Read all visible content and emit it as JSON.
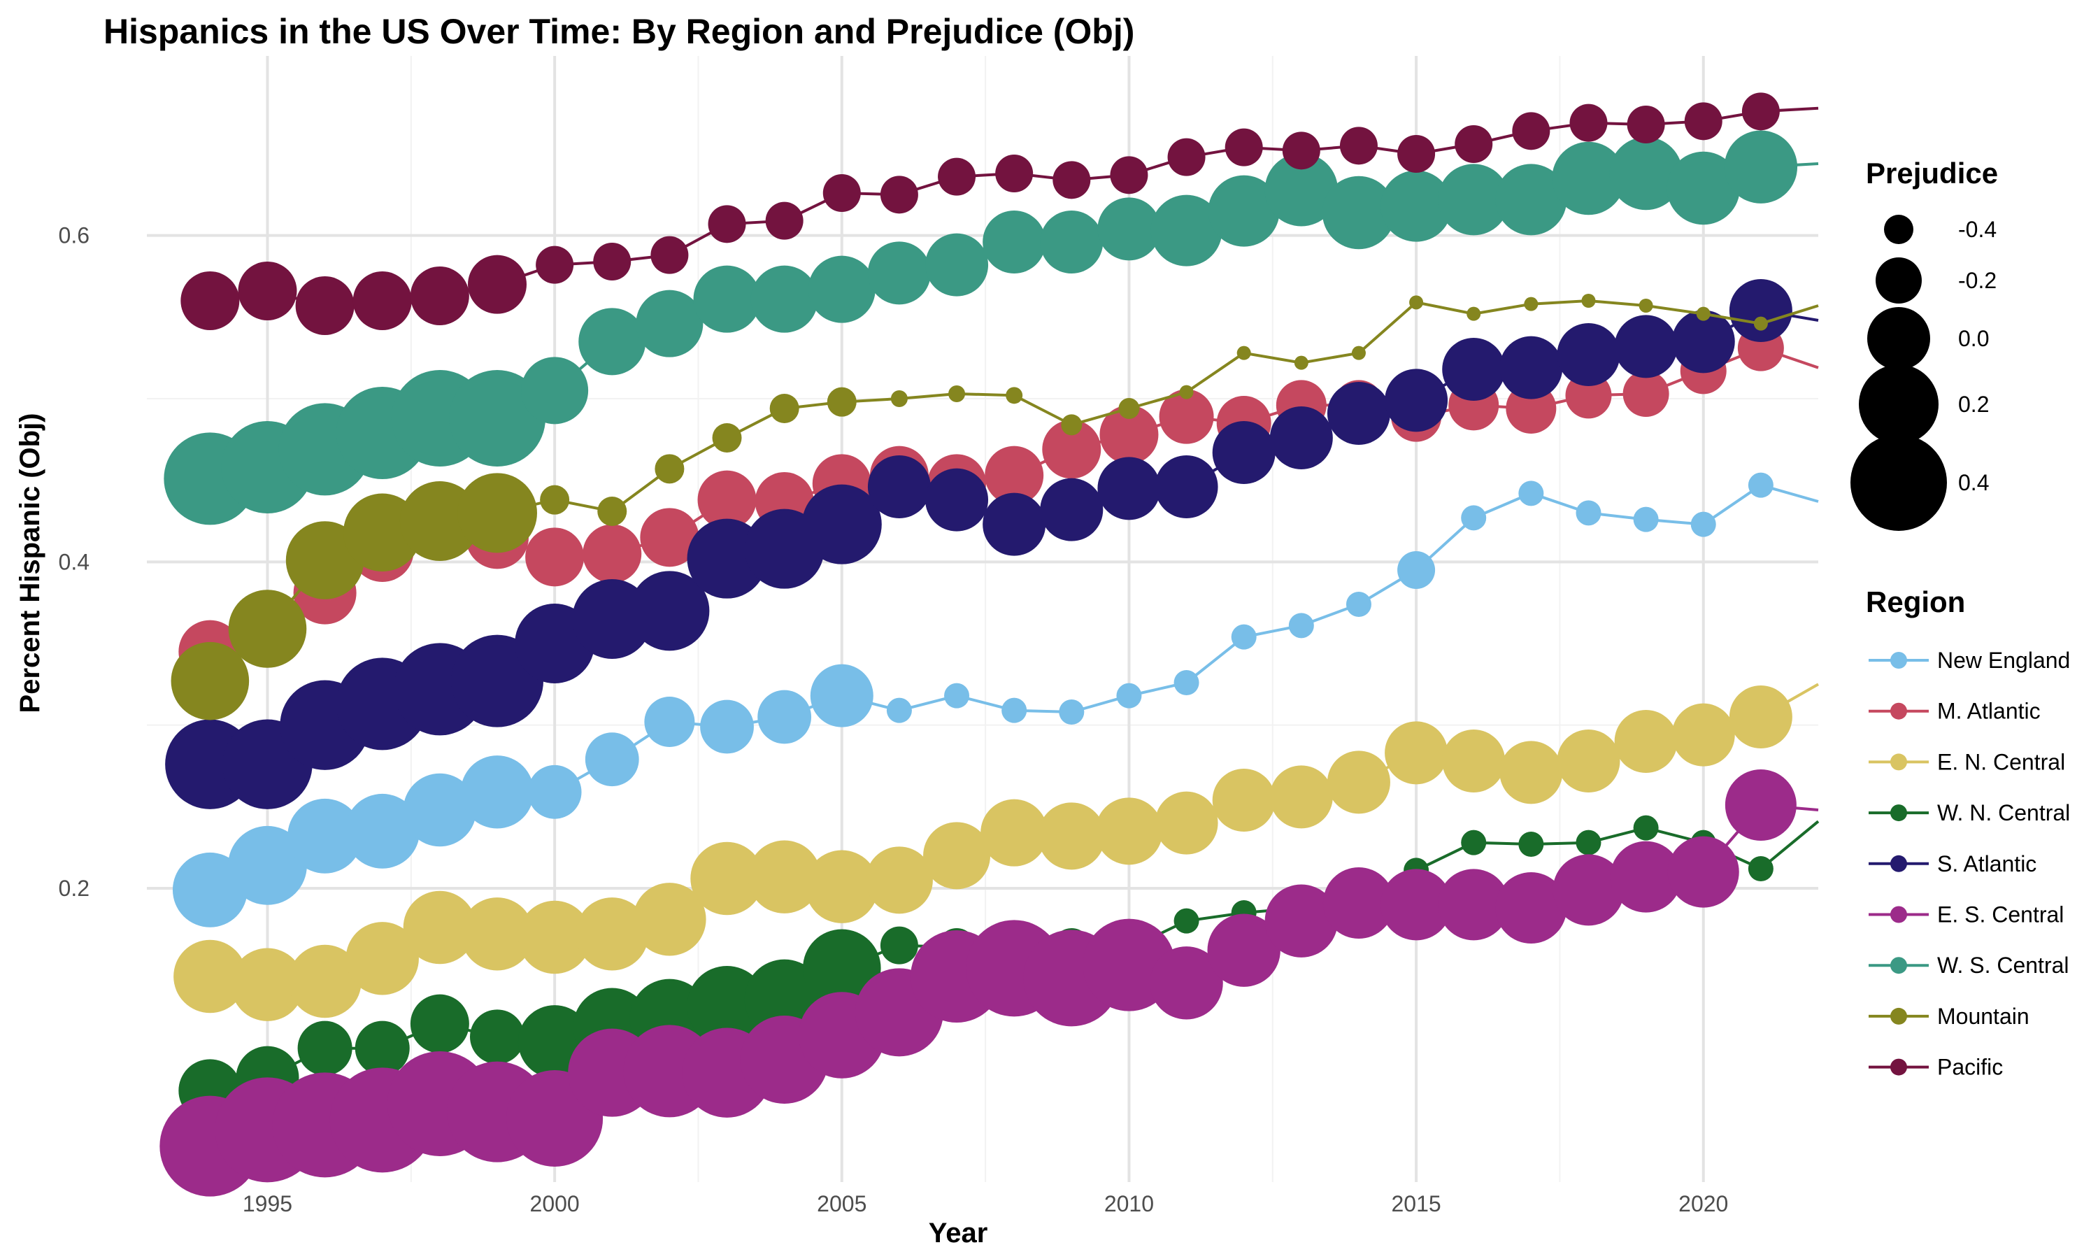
{
  "chart_data": {
    "type": "line",
    "title": "Hispanics in the US Over Time: By Region and Prejudice (Obj)",
    "xlabel": "Year",
    "ylabel": "Percent Hispanic (Obj)",
    "xlim": [
      1992.9,
      2022
    ],
    "ylim": [
      0.02,
      0.71
    ],
    "x_ticks": [
      1995,
      2000,
      2005,
      2010,
      2015,
      2020
    ],
    "y_ticks": [
      0.2,
      0.4,
      0.6
    ],
    "x_tick_labels": [
      "1995",
      "2000",
      "2005",
      "2010",
      "2015",
      "2020"
    ],
    "y_tick_labels": [
      "0.2",
      "0.4",
      "0.6"
    ],
    "grid": true,
    "legend_position": "right",
    "size_legend": {
      "title": "Prejudice",
      "values": [
        -0.4,
        -0.2,
        0.0,
        0.2,
        0.4
      ],
      "labels": [
        "-0.4",
        "-0.2",
        "0.0",
        "0.2",
        "0.4"
      ]
    },
    "color_legend": {
      "title": "Region"
    },
    "series": [
      {
        "name": "New England",
        "color": "#78BEE8",
        "x": [
          1994,
          1995,
          1996,
          1997,
          1998,
          1999,
          2000,
          2001,
          2002,
          2003,
          2004,
          2005,
          2006,
          2007,
          2008,
          2009,
          2010,
          2011,
          2012,
          2013,
          2014,
          2015,
          2016,
          2017,
          2018,
          2019,
          2020,
          2021,
          2022
        ],
        "y": [
          0.199,
          0.214,
          0.232,
          0.235,
          0.248,
          0.259,
          0.259,
          0.279,
          0.302,
          0.299,
          0.305,
          0.318,
          0.309,
          0.318,
          0.309,
          0.308,
          0.318,
          0.326,
          0.354,
          0.361,
          0.374,
          0.395,
          0.427,
          0.442,
          0.43,
          0.426,
          0.423,
          0.447,
          0.437
        ],
        "prejudice": [
          0.14,
          0.19,
          0.14,
          0.14,
          0.12,
          0.12,
          -0.11,
          -0.11,
          -0.15,
          -0.11,
          -0.11,
          0.0,
          -0.45,
          -0.45,
          -0.45,
          -0.45,
          -0.45,
          -0.45,
          -0.45,
          -0.45,
          -0.45,
          -0.3,
          -0.45,
          -0.45,
          -0.45,
          -0.45,
          -0.45,
          -0.45,
          null
        ]
      },
      {
        "name": "M. Atlantic",
        "color": "#C5485F",
        "x": [
          1994,
          1995,
          1996,
          1997,
          1998,
          1999,
          2000,
          2001,
          2002,
          2003,
          2004,
          2005,
          2006,
          2007,
          2008,
          2009,
          2010,
          2011,
          2012,
          2013,
          2014,
          2015,
          2016,
          2017,
          2018,
          2019,
          2020,
          2021,
          2022
        ],
        "y": [
          0.345,
          0.357,
          0.381,
          0.407,
          0.421,
          0.415,
          0.403,
          0.405,
          0.415,
          0.438,
          0.437,
          0.448,
          0.453,
          0.448,
          0.453,
          0.469,
          0.478,
          0.489,
          0.485,
          0.496,
          0.496,
          0.489,
          0.496,
          0.494,
          0.502,
          0.503,
          0.517,
          0.531,
          0.519
        ],
        "prejudice": [
          0.0,
          0.0,
          0.0,
          0.0,
          0.0,
          0.0,
          -0.05,
          -0.05,
          -0.05,
          -0.05,
          -0.05,
          -0.05,
          -0.05,
          -0.05,
          -0.05,
          -0.05,
          -0.05,
          -0.1,
          -0.1,
          -0.15,
          -0.15,
          -0.15,
          -0.15,
          -0.15,
          -0.2,
          -0.2,
          -0.2,
          -0.2,
          null
        ]
      },
      {
        "name": "E. N. Central",
        "color": "#D9C462",
        "x": [
          1994,
          1995,
          1996,
          1997,
          1998,
          1999,
          2000,
          2001,
          2002,
          2003,
          2004,
          2005,
          2006,
          2007,
          2008,
          2009,
          2010,
          2011,
          2012,
          2013,
          2014,
          2015,
          2016,
          2017,
          2018,
          2019,
          2020,
          2021,
          2022
        ],
        "y": [
          0.146,
          0.141,
          0.143,
          0.157,
          0.176,
          0.172,
          0.17,
          0.172,
          0.181,
          0.206,
          0.207,
          0.201,
          0.205,
          0.22,
          0.234,
          0.232,
          0.235,
          0.24,
          0.254,
          0.256,
          0.265,
          0.283,
          0.278,
          0.271,
          0.278,
          0.29,
          0.294,
          0.305,
          0.325
        ],
        "prejudice": [
          0.12,
          0.12,
          0.12,
          0.12,
          0.12,
          0.12,
          0.12,
          0.12,
          0.12,
          0.12,
          0.12,
          0.12,
          0.05,
          0.05,
          0.05,
          0.05,
          0.05,
          0.0,
          0.0,
          0.0,
          0.0,
          0.0,
          0.0,
          0.0,
          0.0,
          0.0,
          0.0,
          0.0,
          null
        ]
      },
      {
        "name": "W. N. Central",
        "color": "#196C2A",
        "x": [
          1994,
          1995,
          1996,
          1997,
          1998,
          1999,
          2000,
          2001,
          2002,
          2003,
          2004,
          2005,
          2006,
          2007,
          2008,
          2009,
          2010,
          2011,
          2012,
          2013,
          2014,
          2015,
          2016,
          2017,
          2018,
          2019,
          2020,
          2021,
          2022
        ],
        "y": [
          0.076,
          0.084,
          0.102,
          0.102,
          0.117,
          0.109,
          0.106,
          0.115,
          0.12,
          0.128,
          0.132,
          0.151,
          0.165,
          0.164,
          0.163,
          0.164,
          0.163,
          0.18,
          0.185,
          0.188,
          0.192,
          0.211,
          0.228,
          0.227,
          0.228,
          0.237,
          0.228,
          0.212,
          0.241
        ],
        "prejudice": [
          0.0,
          0.0,
          -0.1,
          -0.1,
          -0.05,
          -0.1,
          0.12,
          0.18,
          0.2,
          0.2,
          0.2,
          0.18,
          -0.3,
          -0.3,
          -0.3,
          -0.3,
          -0.45,
          -0.45,
          -0.45,
          -0.45,
          -0.45,
          -0.45,
          -0.45,
          -0.45,
          -0.45,
          -0.45,
          -0.45,
          -0.45,
          null
        ]
      },
      {
        "name": "S. Atlantic",
        "color": "#241A6E",
        "x": [
          1994,
          1995,
          1996,
          1997,
          1998,
          1999,
          2000,
          2001,
          2002,
          2003,
          2004,
          2005,
          2006,
          2007,
          2008,
          2009,
          2010,
          2011,
          2012,
          2013,
          2014,
          2015,
          2016,
          2017,
          2018,
          2019,
          2020,
          2021,
          2022
        ],
        "y": [
          0.276,
          0.276,
          0.3,
          0.313,
          0.322,
          0.327,
          0.35,
          0.365,
          0.37,
          0.402,
          0.408,
          0.423,
          0.446,
          0.438,
          0.423,
          0.432,
          0.445,
          0.446,
          0.467,
          0.476,
          0.491,
          0.499,
          0.518,
          0.519,
          0.527,
          0.532,
          0.535,
          0.554,
          0.548
        ],
        "prejudice": [
          0.32,
          0.32,
          0.32,
          0.35,
          0.35,
          0.35,
          0.2,
          0.2,
          0.2,
          0.2,
          0.2,
          0.2,
          0.0,
          0.0,
          0.0,
          0.0,
          0.0,
          0.0,
          0.0,
          0.0,
          0.0,
          0.0,
          0.0,
          0.0,
          0.0,
          0.0,
          0.0,
          0.0,
          null
        ]
      },
      {
        "name": "E. S. Central",
        "color": "#9C2B8A",
        "x": [
          1994,
          1995,
          1996,
          1997,
          1998,
          1999,
          2000,
          2001,
          2002,
          2003,
          2004,
          2005,
          2006,
          2007,
          2008,
          2009,
          2010,
          2011,
          2012,
          2013,
          2014,
          2015,
          2016,
          2017,
          2018,
          2019,
          2020,
          2021,
          2022
        ],
        "y": [
          0.042,
          0.052,
          0.055,
          0.058,
          0.068,
          0.063,
          0.059,
          0.087,
          0.088,
          0.087,
          0.095,
          0.11,
          0.124,
          0.146,
          0.151,
          0.145,
          0.153,
          0.142,
          0.162,
          0.18,
          0.191,
          0.19,
          0.19,
          0.188,
          0.199,
          0.207,
          0.21,
          0.251,
          0.248
        ],
        "prejudice": [
          0.45,
          0.5,
          0.5,
          0.5,
          0.5,
          0.45,
          0.4,
          0.3,
          0.35,
          0.32,
          0.3,
          0.28,
          0.3,
          0.35,
          0.4,
          0.4,
          0.35,
          0.12,
          0.12,
          0.12,
          0.1,
          0.1,
          0.1,
          0.1,
          0.1,
          0.1,
          0.1,
          0.1,
          null
        ]
      },
      {
        "name": "W. S. Central",
        "color": "#3B9984",
        "x": [
          1994,
          1995,
          1996,
          1997,
          1998,
          1999,
          2000,
          2001,
          2002,
          2003,
          2004,
          2005,
          2006,
          2007,
          2008,
          2009,
          2010,
          2011,
          2012,
          2013,
          2014,
          2015,
          2016,
          2017,
          2018,
          2019,
          2020,
          2021,
          2022
        ],
        "y": [
          0.451,
          0.458,
          0.469,
          0.479,
          0.488,
          0.488,
          0.505,
          0.535,
          0.546,
          0.561,
          0.561,
          0.567,
          0.577,
          0.582,
          0.596,
          0.596,
          0.604,
          0.603,
          0.615,
          0.628,
          0.614,
          0.618,
          0.622,
          0.622,
          0.635,
          0.638,
          0.629,
          0.642,
          0.644
        ],
        "prejudice": [
          0.35,
          0.35,
          0.35,
          0.35,
          0.4,
          0.4,
          0.05,
          0.05,
          0.05,
          0.05,
          0.05,
          0.05,
          0.0,
          0.0,
          0.0,
          0.0,
          0.0,
          0.1,
          0.1,
          0.12,
          0.12,
          0.1,
          0.1,
          0.1,
          0.12,
          0.12,
          0.12,
          0.12,
          null
        ]
      },
      {
        "name": "Mountain",
        "color": "#85861F",
        "x": [
          1994,
          1995,
          1996,
          1997,
          1998,
          1999,
          2000,
          2001,
          2002,
          2003,
          2004,
          2005,
          2006,
          2007,
          2008,
          2009,
          2010,
          2011,
          2012,
          2013,
          2014,
          2015,
          2016,
          2017,
          2018,
          2019,
          2020,
          2021,
          2022
        ],
        "y": [
          0.327,
          0.359,
          0.401,
          0.418,
          0.425,
          0.43,
          0.438,
          0.431,
          0.457,
          0.476,
          0.494,
          0.498,
          0.5,
          0.503,
          0.502,
          0.484,
          0.494,
          0.504,
          0.528,
          0.522,
          0.528,
          0.559,
          0.552,
          0.558,
          0.56,
          0.557,
          0.552,
          0.546,
          0.557
        ],
        "prejudice": [
          0.18,
          0.18,
          0.18,
          0.18,
          0.2,
          0.2,
          -0.4,
          -0.4,
          -0.4,
          -0.4,
          -0.4,
          -0.4,
          -0.55,
          -0.55,
          -0.55,
          -0.5,
          -0.5,
          -0.7,
          -0.7,
          -0.7,
          -0.7,
          -0.7,
          -0.7,
          -0.7,
          -0.7,
          -0.7,
          -0.7,
          -0.7,
          null
        ]
      },
      {
        "name": "Pacific",
        "color": "#73133F",
        "x": [
          1994,
          1995,
          1996,
          1997,
          1998,
          1999,
          2000,
          2001,
          2002,
          2003,
          2004,
          2005,
          2006,
          2007,
          2008,
          2009,
          2010,
          2011,
          2012,
          2013,
          2014,
          2015,
          2016,
          2017,
          2018,
          2019,
          2020,
          2021,
          2022
        ],
        "y": [
          0.56,
          0.566,
          0.557,
          0.56,
          0.563,
          0.57,
          0.582,
          0.584,
          0.588,
          0.607,
          0.609,
          0.626,
          0.625,
          0.636,
          0.638,
          0.634,
          0.637,
          0.648,
          0.654,
          0.652,
          0.655,
          0.65,
          0.656,
          0.664,
          0.669,
          0.668,
          0.67,
          0.676,
          0.678
        ],
        "prejudice": [
          -0.05,
          -0.05,
          -0.05,
          -0.05,
          -0.05,
          -0.05,
          -0.3,
          -0.3,
          -0.3,
          -0.3,
          -0.3,
          -0.3,
          -0.3,
          -0.3,
          -0.3,
          -0.3,
          -0.3,
          -0.3,
          -0.3,
          -0.3,
          -0.3,
          -0.3,
          -0.3,
          -0.3,
          -0.3,
          -0.3,
          -0.3,
          -0.3,
          null
        ]
      }
    ]
  }
}
